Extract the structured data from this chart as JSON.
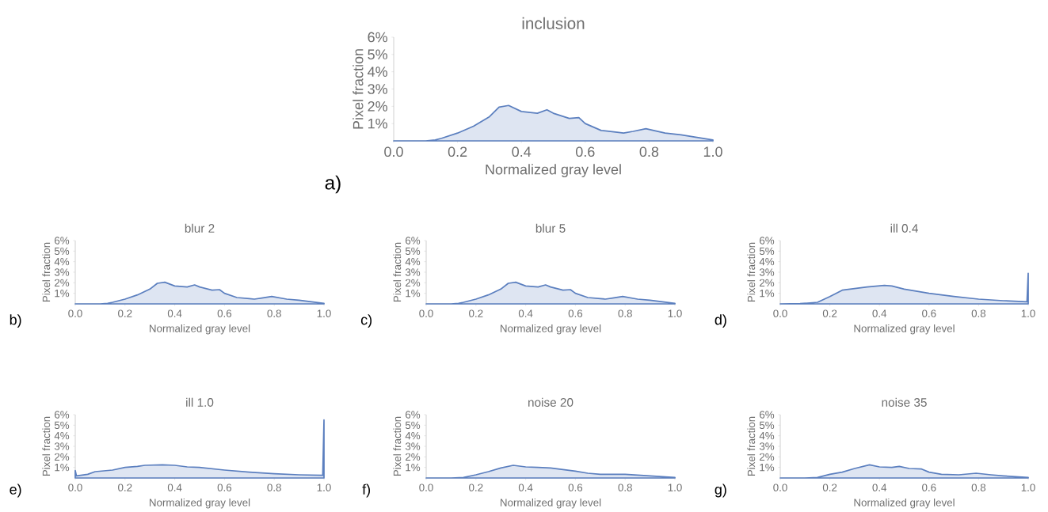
{
  "chart_data": [
    {
      "type": "area",
      "title": "inclusion",
      "xlabel": "Normalized gray level",
      "ylabel": "Pixel fraction",
      "color": "#5b7fbf",
      "annotations": [
        "a)"
      ],
      "x": [
        0,
        0.1,
        0.13,
        0.15,
        0.2,
        0.25,
        0.3,
        0.33,
        0.36,
        0.4,
        0.45,
        0.48,
        0.5,
        0.55,
        0.58,
        0.6,
        0.65,
        0.7,
        0.72,
        0.75,
        0.79,
        0.85,
        0.9,
        0.95,
        1.0
      ],
      "values": [
        0,
        0,
        0.05,
        0.15,
        0.45,
        0.85,
        1.4,
        1.95,
        2.05,
        1.7,
        1.6,
        1.8,
        1.6,
        1.3,
        1.35,
        1.0,
        0.6,
        0.5,
        0.45,
        0.55,
        0.7,
        0.45,
        0.35,
        0.2,
        0.05
      ],
      "xlim": [
        0,
        1
      ],
      "ylim": [
        0,
        6
      ],
      "xticks": [
        {
          "value": 0,
          "label": "0.0"
        },
        {
          "value": 0.2,
          "label": "0.2"
        },
        {
          "value": 0.4,
          "label": "0.4"
        },
        {
          "value": 0.6,
          "label": "0.6"
        },
        {
          "value": 0.8,
          "label": "0.8"
        },
        {
          "value": 1,
          "label": "1.0"
        }
      ],
      "yticks": [
        {
          "value": 1,
          "label": "1%"
        },
        {
          "value": 2,
          "label": "2%"
        },
        {
          "value": 3,
          "label": "3%"
        },
        {
          "value": 4,
          "label": "4%"
        },
        {
          "value": 5,
          "label": "5%"
        },
        {
          "value": 6,
          "label": "6%"
        }
      ]
    },
    {
      "type": "area",
      "title": "blur 2",
      "xlabel": "Normalized gray level",
      "ylabel": "Pixel fraction",
      "color": "#5b7fbf",
      "annotations": [
        "b)"
      ],
      "x": [
        0,
        0.1,
        0.13,
        0.15,
        0.2,
        0.25,
        0.3,
        0.33,
        0.36,
        0.4,
        0.45,
        0.48,
        0.5,
        0.55,
        0.58,
        0.6,
        0.65,
        0.7,
        0.72,
        0.75,
        0.79,
        0.85,
        0.9,
        0.95,
        1.0
      ],
      "values": [
        0,
        0,
        0.05,
        0.15,
        0.45,
        0.85,
        1.4,
        1.95,
        2.05,
        1.7,
        1.6,
        1.8,
        1.6,
        1.3,
        1.35,
        1.0,
        0.6,
        0.5,
        0.45,
        0.55,
        0.7,
        0.45,
        0.35,
        0.2,
        0.05
      ],
      "xlim": [
        0,
        1
      ],
      "ylim": [
        0,
        6
      ],
      "xticks": [
        {
          "value": 0,
          "label": "0.0"
        },
        {
          "value": 0.2,
          "label": "0.2"
        },
        {
          "value": 0.4,
          "label": "0.4"
        },
        {
          "value": 0.6,
          "label": "0.6"
        },
        {
          "value": 0.8,
          "label": "0.8"
        },
        {
          "value": 1,
          "label": "1.0"
        }
      ],
      "yticks": [
        {
          "value": 1,
          "label": "1%"
        },
        {
          "value": 2,
          "label": "2%"
        },
        {
          "value": 3,
          "label": "3%"
        },
        {
          "value": 4,
          "label": "4%"
        },
        {
          "value": 5,
          "label": "5%"
        },
        {
          "value": 6,
          "label": "6%"
        }
      ]
    },
    {
      "type": "area",
      "title": "blur 5",
      "xlabel": "Normalized gray level",
      "ylabel": "Pixel fraction",
      "color": "#5b7fbf",
      "annotations": [
        "c)"
      ],
      "x": [
        0,
        0.1,
        0.13,
        0.15,
        0.2,
        0.25,
        0.3,
        0.33,
        0.36,
        0.4,
        0.45,
        0.48,
        0.5,
        0.55,
        0.58,
        0.6,
        0.65,
        0.7,
        0.72,
        0.75,
        0.79,
        0.85,
        0.9,
        0.95,
        1.0
      ],
      "values": [
        0,
        0,
        0.05,
        0.15,
        0.45,
        0.85,
        1.4,
        1.95,
        2.05,
        1.7,
        1.6,
        1.8,
        1.6,
        1.3,
        1.35,
        1.0,
        0.6,
        0.5,
        0.45,
        0.55,
        0.7,
        0.45,
        0.35,
        0.2,
        0.05
      ],
      "xlim": [
        0,
        1
      ],
      "ylim": [
        0,
        6
      ],
      "xticks": [
        {
          "value": 0,
          "label": "0.0"
        },
        {
          "value": 0.2,
          "label": "0.2"
        },
        {
          "value": 0.4,
          "label": "0.4"
        },
        {
          "value": 0.6,
          "label": "0.6"
        },
        {
          "value": 0.8,
          "label": "0.8"
        },
        {
          "value": 1,
          "label": "1.0"
        }
      ],
      "yticks": [
        {
          "value": 1,
          "label": "1%"
        },
        {
          "value": 2,
          "label": "2%"
        },
        {
          "value": 3,
          "label": "3%"
        },
        {
          "value": 4,
          "label": "4%"
        },
        {
          "value": 5,
          "label": "5%"
        },
        {
          "value": 6,
          "label": "6%"
        }
      ]
    },
    {
      "type": "area",
      "title": "ill 0.4",
      "xlabel": "Normalized gray level",
      "ylabel": "Pixel fraction",
      "color": "#5b7fbf",
      "annotations": [
        "d)"
      ],
      "x": [
        0,
        0.08,
        0.15,
        0.2,
        0.25,
        0.3,
        0.35,
        0.42,
        0.45,
        0.5,
        0.6,
        0.7,
        0.8,
        0.9,
        0.995,
        1.0
      ],
      "values": [
        0,
        0.02,
        0.15,
        0.7,
        1.3,
        1.45,
        1.6,
        1.75,
        1.7,
        1.4,
        1.0,
        0.7,
        0.45,
        0.3,
        0.2,
        2.9
      ],
      "xlim": [
        0,
        1
      ],
      "ylim": [
        0,
        6
      ],
      "xticks": [
        {
          "value": 0,
          "label": "0.0"
        },
        {
          "value": 0.2,
          "label": "0.2"
        },
        {
          "value": 0.4,
          "label": "0.4"
        },
        {
          "value": 0.6,
          "label": "0.6"
        },
        {
          "value": 0.8,
          "label": "0.8"
        },
        {
          "value": 1,
          "label": "1.0"
        }
      ],
      "yticks": [
        {
          "value": 1,
          "label": "1%"
        },
        {
          "value": 2,
          "label": "2%"
        },
        {
          "value": 3,
          "label": "3%"
        },
        {
          "value": 4,
          "label": "4%"
        },
        {
          "value": 5,
          "label": "5%"
        },
        {
          "value": 6,
          "label": "6%"
        }
      ]
    },
    {
      "type": "area",
      "title": "ill 1.0",
      "xlabel": "Normalized gray level",
      "ylabel": "Pixel fraction",
      "color": "#5b7fbf",
      "annotations": [
        "e)"
      ],
      "x": [
        0,
        0.005,
        0.05,
        0.08,
        0.15,
        0.2,
        0.25,
        0.28,
        0.35,
        0.4,
        0.45,
        0.5,
        0.6,
        0.7,
        0.8,
        0.9,
        0.995,
        1.0
      ],
      "values": [
        0.7,
        0.2,
        0.35,
        0.6,
        0.75,
        1.0,
        1.1,
        1.2,
        1.25,
        1.2,
        1.05,
        1.0,
        0.75,
        0.55,
        0.4,
        0.3,
        0.25,
        5.5
      ],
      "xlim": [
        0,
        1
      ],
      "ylim": [
        0,
        6
      ],
      "xticks": [
        {
          "value": 0,
          "label": "0.0"
        },
        {
          "value": 0.2,
          "label": "0.2"
        },
        {
          "value": 0.4,
          "label": "0.4"
        },
        {
          "value": 0.6,
          "label": "0.6"
        },
        {
          "value": 0.8,
          "label": "0.8"
        },
        {
          "value": 1,
          "label": "1.0"
        }
      ],
      "yticks": [
        {
          "value": 1,
          "label": "1%"
        },
        {
          "value": 2,
          "label": "2%"
        },
        {
          "value": 3,
          "label": "3%"
        },
        {
          "value": 4,
          "label": "4%"
        },
        {
          "value": 5,
          "label": "5%"
        },
        {
          "value": 6,
          "label": "6%"
        }
      ]
    },
    {
      "type": "area",
      "title": "noise 20",
      "xlabel": "Normalized gray level",
      "ylabel": "Pixel fraction",
      "color": "#5b7fbf",
      "annotations": [
        "f)"
      ],
      "x": [
        0,
        0.1,
        0.15,
        0.2,
        0.25,
        0.3,
        0.35,
        0.4,
        0.45,
        0.5,
        0.55,
        0.6,
        0.65,
        0.7,
        0.8,
        0.9,
        1.0
      ],
      "values": [
        0,
        0,
        0.05,
        0.3,
        0.6,
        0.95,
        1.2,
        1.05,
        1.0,
        0.95,
        0.8,
        0.65,
        0.45,
        0.35,
        0.35,
        0.2,
        0.05
      ],
      "xlim": [
        0,
        1
      ],
      "ylim": [
        0,
        6
      ],
      "xticks": [
        {
          "value": 0,
          "label": "0.0"
        },
        {
          "value": 0.2,
          "label": "0.2"
        },
        {
          "value": 0.4,
          "label": "0.4"
        },
        {
          "value": 0.6,
          "label": "0.6"
        },
        {
          "value": 0.8,
          "label": "0.8"
        },
        {
          "value": 1,
          "label": "1.0"
        }
      ],
      "yticks": [
        {
          "value": 1,
          "label": "1%"
        },
        {
          "value": 2,
          "label": "2%"
        },
        {
          "value": 3,
          "label": "3%"
        },
        {
          "value": 4,
          "label": "4%"
        },
        {
          "value": 5,
          "label": "5%"
        },
        {
          "value": 6,
          "label": "6%"
        }
      ]
    },
    {
      "type": "area",
      "title": "noise 35",
      "xlabel": "Normalized gray level",
      "ylabel": "Pixel fraction",
      "color": "#5b7fbf",
      "annotations": [
        "g)"
      ],
      "x": [
        0,
        0.1,
        0.15,
        0.2,
        0.25,
        0.3,
        0.36,
        0.4,
        0.45,
        0.48,
        0.52,
        0.57,
        0.6,
        0.65,
        0.72,
        0.79,
        0.85,
        0.9,
        1.0
      ],
      "values": [
        0,
        0,
        0.05,
        0.35,
        0.55,
        0.9,
        1.25,
        1.05,
        1.0,
        1.1,
        0.9,
        0.85,
        0.55,
        0.35,
        0.3,
        0.45,
        0.3,
        0.2,
        0.05
      ],
      "xlim": [
        0,
        1
      ],
      "ylim": [
        0,
        6
      ],
      "xticks": [
        {
          "value": 0,
          "label": "0.0"
        },
        {
          "value": 0.2,
          "label": "0.2"
        },
        {
          "value": 0.4,
          "label": "0.4"
        },
        {
          "value": 0.6,
          "label": "0.6"
        },
        {
          "value": 0.8,
          "label": "0.8"
        },
        {
          "value": 1,
          "label": "1.0"
        }
      ],
      "yticks": [
        {
          "value": 1,
          "label": "1%"
        },
        {
          "value": 2,
          "label": "2%"
        },
        {
          "value": 3,
          "label": "3%"
        },
        {
          "value": 4,
          "label": "4%"
        },
        {
          "value": 5,
          "label": "5%"
        },
        {
          "value": 6,
          "label": "6%"
        }
      ]
    }
  ]
}
